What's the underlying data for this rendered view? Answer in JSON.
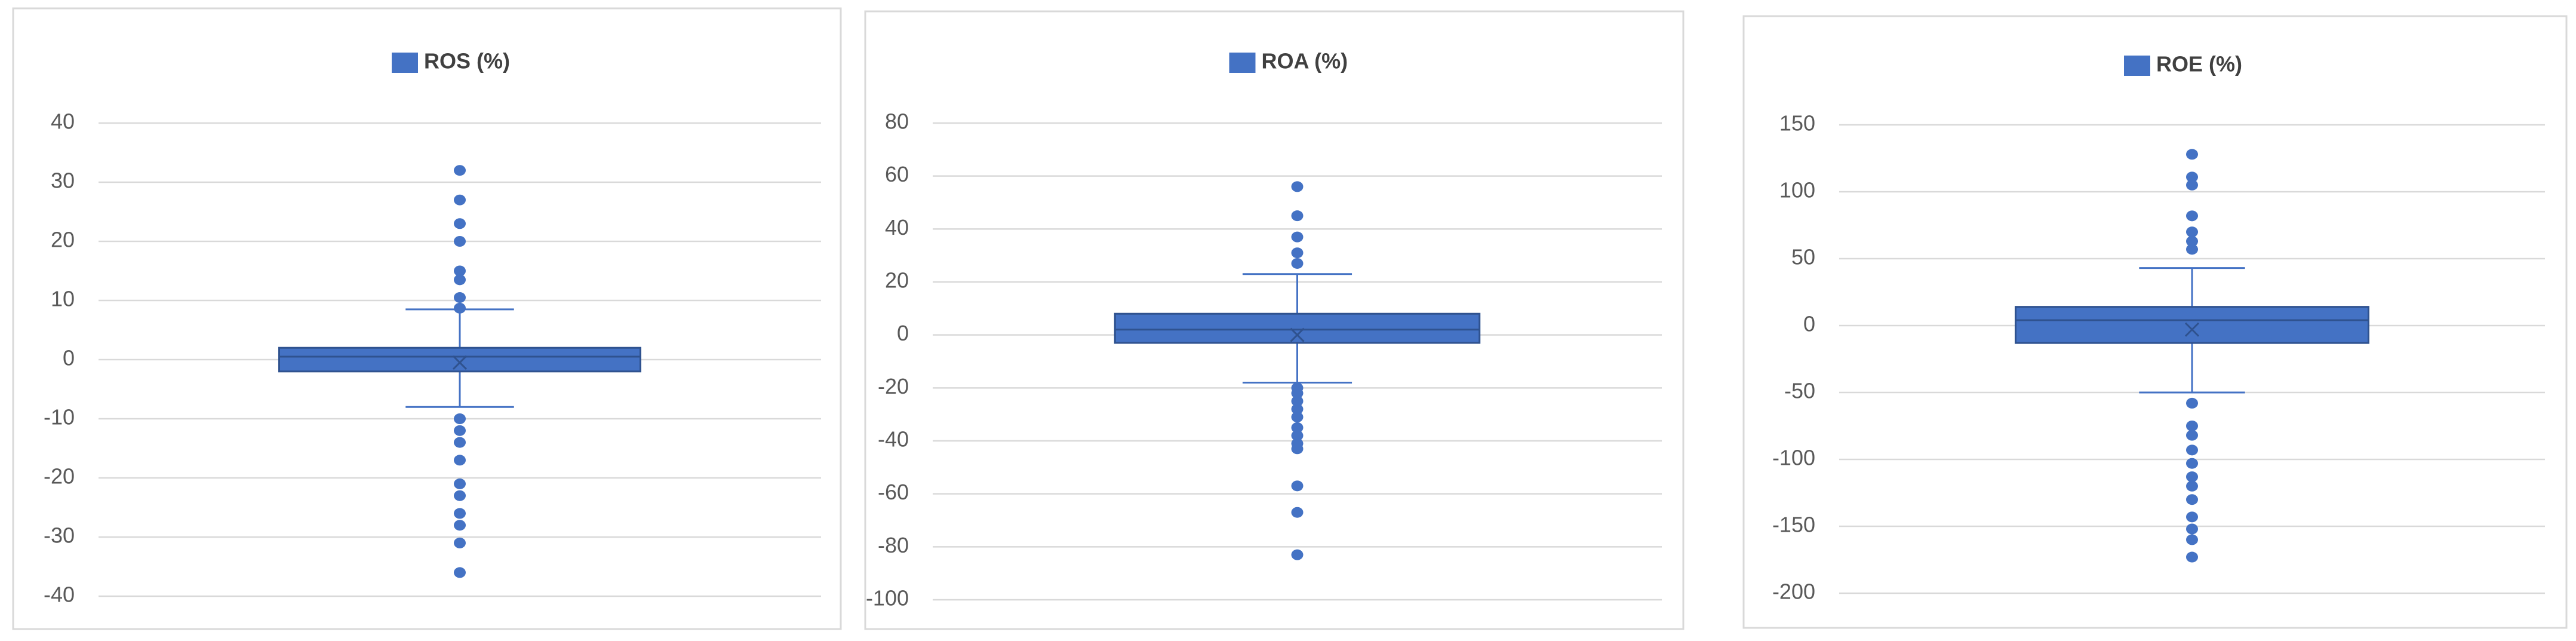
{
  "chart_data": [
    {
      "type": "box",
      "series": [
        {
          "name": "ROS (%)",
          "color": "#4472c4",
          "q1": -2,
          "median": 0.5,
          "q3": 2,
          "mean": -0.5,
          "whisker_low": -8,
          "whisker_high": 8.5,
          "outliers": [
            32,
            27,
            23,
            20,
            15,
            13.5,
            10.5,
            8.7,
            -10,
            -12,
            -14,
            -17,
            -21,
            -23,
            -26,
            -28,
            -31,
            -36
          ]
        }
      ],
      "ylim": [
        -40,
        40
      ],
      "yticks": [
        -40,
        -30,
        -20,
        -10,
        0,
        10,
        20,
        30,
        40
      ],
      "grid": true,
      "legend": "top"
    },
    {
      "type": "box",
      "series": [
        {
          "name": "ROA (%)",
          "color": "#4472c4",
          "q1": -3,
          "median": 2,
          "q3": 8,
          "mean": 0,
          "whisker_low": -18,
          "whisker_high": 23,
          "outliers": [
            56,
            45,
            37,
            31,
            27,
            -20,
            -22,
            -25,
            -28,
            -31,
            -35,
            -38,
            -41,
            -43,
            -57,
            -67,
            -83
          ]
        }
      ],
      "ylim": [
        -100,
        80
      ],
      "yticks": [
        -100,
        -80,
        -60,
        -40,
        -20,
        0,
        20,
        40,
        60,
        80
      ],
      "grid": true,
      "legend": "top"
    },
    {
      "type": "box",
      "series": [
        {
          "name": "ROE (%)",
          "color": "#4472c4",
          "q1": -13,
          "median": 4,
          "q3": 14,
          "mean": -3,
          "whisker_low": -50,
          "whisker_high": 43,
          "outliers": [
            128,
            111,
            105,
            82,
            70,
            63,
            57,
            -58,
            -75,
            -82,
            -93,
            -103,
            -113,
            -120,
            -130,
            -143,
            -152,
            -160,
            -173
          ]
        }
      ],
      "ylim": [
        -200,
        150
      ],
      "yticks": [
        -200,
        -150,
        -100,
        -50,
        0,
        50,
        100,
        150
      ],
      "grid": true,
      "legend": "top"
    }
  ]
}
